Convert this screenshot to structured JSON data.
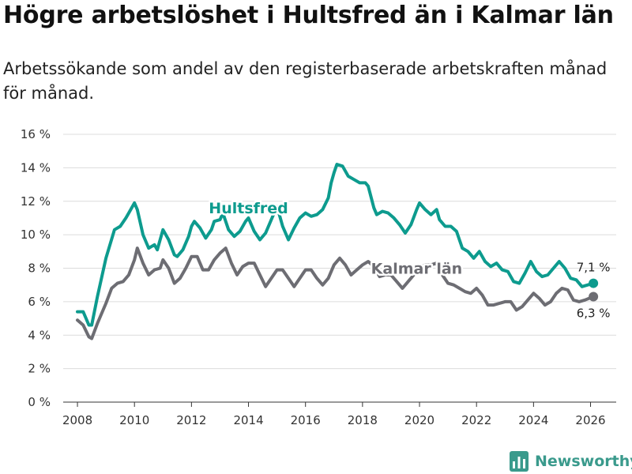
{
  "title": "Högre arbetslöshet i Hultsfred än i Kalmar län",
  "subtitle": "Arbetssökande som andel av den registerbaserade arbetskraften månad för månad.",
  "brand": {
    "name": "Newsworthy",
    "color": "#3a9a8c"
  },
  "chart_data": {
    "type": "line",
    "title": "Högre arbetslöshet i Hultsfred än i Kalmar län",
    "xlabel": "",
    "ylabel": "",
    "xlim": [
      2007.5,
      2026.9
    ],
    "ylim": [
      0,
      16
    ],
    "x_ticks": [
      2008,
      2010,
      2012,
      2014,
      2016,
      2018,
      2020,
      2022,
      2024,
      2026
    ],
    "y_ticks": [
      0,
      2,
      4,
      6,
      8,
      10,
      12,
      14,
      16
    ],
    "y_tick_labels": [
      "0 %",
      "2 %",
      "4 %",
      "6 %",
      "8 %",
      "10 %",
      "12 %",
      "14 %",
      "16 %"
    ],
    "series": [
      {
        "name": "Hultsfred",
        "color": "#0d9b8e",
        "end_label": "7,1 %",
        "points": [
          [
            2008.0,
            5.4
          ],
          [
            2008.2,
            5.4
          ],
          [
            2008.4,
            4.6
          ],
          [
            2008.5,
            4.6
          ],
          [
            2008.7,
            6.3
          ],
          [
            2009.0,
            8.6
          ],
          [
            2009.3,
            10.3
          ],
          [
            2009.5,
            10.5
          ],
          [
            2009.7,
            11.0
          ],
          [
            2009.8,
            11.3
          ],
          [
            2010.0,
            11.9
          ],
          [
            2010.1,
            11.5
          ],
          [
            2010.3,
            10.0
          ],
          [
            2010.5,
            9.2
          ],
          [
            2010.7,
            9.4
          ],
          [
            2010.8,
            9.1
          ],
          [
            2011.0,
            10.3
          ],
          [
            2011.2,
            9.7
          ],
          [
            2011.4,
            8.8
          ],
          [
            2011.5,
            8.7
          ],
          [
            2011.7,
            9.1
          ],
          [
            2011.9,
            9.9
          ],
          [
            2012.0,
            10.5
          ],
          [
            2012.1,
            10.8
          ],
          [
            2012.3,
            10.4
          ],
          [
            2012.5,
            9.8
          ],
          [
            2012.7,
            10.3
          ],
          [
            2012.8,
            10.8
          ],
          [
            2013.0,
            10.9
          ],
          [
            2013.1,
            11.3
          ],
          [
            2013.3,
            10.3
          ],
          [
            2013.5,
            9.9
          ],
          [
            2013.7,
            10.2
          ],
          [
            2013.9,
            10.8
          ],
          [
            2014.0,
            11.0
          ],
          [
            2014.2,
            10.2
          ],
          [
            2014.4,
            9.7
          ],
          [
            2014.6,
            10.1
          ],
          [
            2014.8,
            10.9
          ],
          [
            2015.0,
            11.7
          ],
          [
            2015.2,
            10.5
          ],
          [
            2015.4,
            9.7
          ],
          [
            2015.6,
            10.4
          ],
          [
            2015.8,
            11.0
          ],
          [
            2016.0,
            11.3
          ],
          [
            2016.2,
            11.1
          ],
          [
            2016.4,
            11.2
          ],
          [
            2016.6,
            11.5
          ],
          [
            2016.8,
            12.2
          ],
          [
            2016.9,
            13.1
          ],
          [
            2017.0,
            13.7
          ],
          [
            2017.1,
            14.2
          ],
          [
            2017.3,
            14.1
          ],
          [
            2017.5,
            13.5
          ],
          [
            2017.7,
            13.3
          ],
          [
            2017.9,
            13.1
          ],
          [
            2018.1,
            13.1
          ],
          [
            2018.2,
            12.9
          ],
          [
            2018.4,
            11.6
          ],
          [
            2018.5,
            11.2
          ],
          [
            2018.7,
            11.4
          ],
          [
            2018.9,
            11.3
          ],
          [
            2019.1,
            11.0
          ],
          [
            2019.3,
            10.6
          ],
          [
            2019.5,
            10.1
          ],
          [
            2019.7,
            10.6
          ],
          [
            2019.9,
            11.5
          ],
          [
            2020.0,
            11.9
          ],
          [
            2020.2,
            11.5
          ],
          [
            2020.4,
            11.2
          ],
          [
            2020.6,
            11.5
          ],
          [
            2020.7,
            10.9
          ],
          [
            2020.9,
            10.5
          ],
          [
            2021.1,
            10.5
          ],
          [
            2021.3,
            10.2
          ],
          [
            2021.5,
            9.2
          ],
          [
            2021.7,
            9.0
          ],
          [
            2021.9,
            8.6
          ],
          [
            2022.1,
            9.0
          ],
          [
            2022.3,
            8.4
          ],
          [
            2022.5,
            8.1
          ],
          [
            2022.7,
            8.3
          ],
          [
            2022.9,
            7.9
          ],
          [
            2023.1,
            7.8
          ],
          [
            2023.3,
            7.2
          ],
          [
            2023.5,
            7.1
          ],
          [
            2023.7,
            7.7
          ],
          [
            2023.9,
            8.4
          ],
          [
            2024.1,
            7.8
          ],
          [
            2024.3,
            7.5
          ],
          [
            2024.5,
            7.6
          ],
          [
            2024.7,
            8.0
          ],
          [
            2024.9,
            8.4
          ],
          [
            2025.1,
            8.0
          ],
          [
            2025.3,
            7.4
          ],
          [
            2025.5,
            7.3
          ],
          [
            2025.7,
            6.9
          ],
          [
            2025.9,
            7.0
          ],
          [
            2026.1,
            7.1
          ]
        ]
      },
      {
        "name": "Kalmar län",
        "color": "#6d6d73",
        "end_label": "6,3 %",
        "points": [
          [
            2008.0,
            4.9
          ],
          [
            2008.2,
            4.6
          ],
          [
            2008.4,
            3.9
          ],
          [
            2008.5,
            3.8
          ],
          [
            2008.7,
            4.7
          ],
          [
            2009.0,
            5.9
          ],
          [
            2009.2,
            6.8
          ],
          [
            2009.4,
            7.1
          ],
          [
            2009.6,
            7.2
          ],
          [
            2009.8,
            7.6
          ],
          [
            2010.0,
            8.5
          ],
          [
            2010.1,
            9.2
          ],
          [
            2010.3,
            8.3
          ],
          [
            2010.5,
            7.6
          ],
          [
            2010.7,
            7.9
          ],
          [
            2010.9,
            8.0
          ],
          [
            2011.0,
            8.5
          ],
          [
            2011.2,
            8.0
          ],
          [
            2011.4,
            7.1
          ],
          [
            2011.6,
            7.4
          ],
          [
            2011.8,
            8.0
          ],
          [
            2012.0,
            8.7
          ],
          [
            2012.2,
            8.7
          ],
          [
            2012.4,
            7.9
          ],
          [
            2012.6,
            7.9
          ],
          [
            2012.8,
            8.5
          ],
          [
            2013.0,
            8.9
          ],
          [
            2013.2,
            9.2
          ],
          [
            2013.4,
            8.3
          ],
          [
            2013.6,
            7.6
          ],
          [
            2013.8,
            8.1
          ],
          [
            2014.0,
            8.3
          ],
          [
            2014.2,
            8.3
          ],
          [
            2014.4,
            7.6
          ],
          [
            2014.6,
            6.9
          ],
          [
            2014.8,
            7.4
          ],
          [
            2015.0,
            7.9
          ],
          [
            2015.2,
            7.9
          ],
          [
            2015.4,
            7.4
          ],
          [
            2015.6,
            6.9
          ],
          [
            2015.8,
            7.4
          ],
          [
            2016.0,
            7.9
          ],
          [
            2016.2,
            7.9
          ],
          [
            2016.4,
            7.4
          ],
          [
            2016.6,
            7.0
          ],
          [
            2016.8,
            7.4
          ],
          [
            2017.0,
            8.2
          ],
          [
            2017.2,
            8.6
          ],
          [
            2017.4,
            8.2
          ],
          [
            2017.6,
            7.6
          ],
          [
            2017.8,
            7.9
          ],
          [
            2018.0,
            8.2
          ],
          [
            2018.2,
            8.4
          ],
          [
            2018.4,
            8.1
          ],
          [
            2018.6,
            7.5
          ],
          [
            2018.8,
            7.6
          ],
          [
            2019.0,
            7.6
          ],
          [
            2019.2,
            7.2
          ],
          [
            2019.4,
            6.8
          ],
          [
            2019.6,
            7.2
          ],
          [
            2019.8,
            7.6
          ],
          [
            2020.0,
            8.0
          ],
          [
            2020.2,
            8.2
          ],
          [
            2020.4,
            8.2
          ],
          [
            2020.6,
            8.3
          ],
          [
            2020.8,
            7.6
          ],
          [
            2021.0,
            7.1
          ],
          [
            2021.2,
            7.0
          ],
          [
            2021.4,
            6.8
          ],
          [
            2021.6,
            6.6
          ],
          [
            2021.8,
            6.5
          ],
          [
            2022.0,
            6.8
          ],
          [
            2022.2,
            6.4
          ],
          [
            2022.4,
            5.8
          ],
          [
            2022.6,
            5.8
          ],
          [
            2022.8,
            5.9
          ],
          [
            2023.0,
            6.0
          ],
          [
            2023.2,
            6.0
          ],
          [
            2023.4,
            5.5
          ],
          [
            2023.6,
            5.7
          ],
          [
            2023.8,
            6.1
          ],
          [
            2024.0,
            6.5
          ],
          [
            2024.2,
            6.2
          ],
          [
            2024.4,
            5.8
          ],
          [
            2024.6,
            6.0
          ],
          [
            2024.8,
            6.5
          ],
          [
            2025.0,
            6.8
          ],
          [
            2025.2,
            6.7
          ],
          [
            2025.4,
            6.1
          ],
          [
            2025.6,
            6.0
          ],
          [
            2025.8,
            6.1
          ],
          [
            2026.1,
            6.3
          ]
        ]
      }
    ],
    "annotations": [
      {
        "text": "Hultsfred",
        "series": "Hultsfred",
        "x": 2014.0,
        "y": 11.6
      },
      {
        "text": "Kalmar län",
        "series": "Kalmar län",
        "x": 2019.9,
        "y": 8.0
      }
    ]
  }
}
